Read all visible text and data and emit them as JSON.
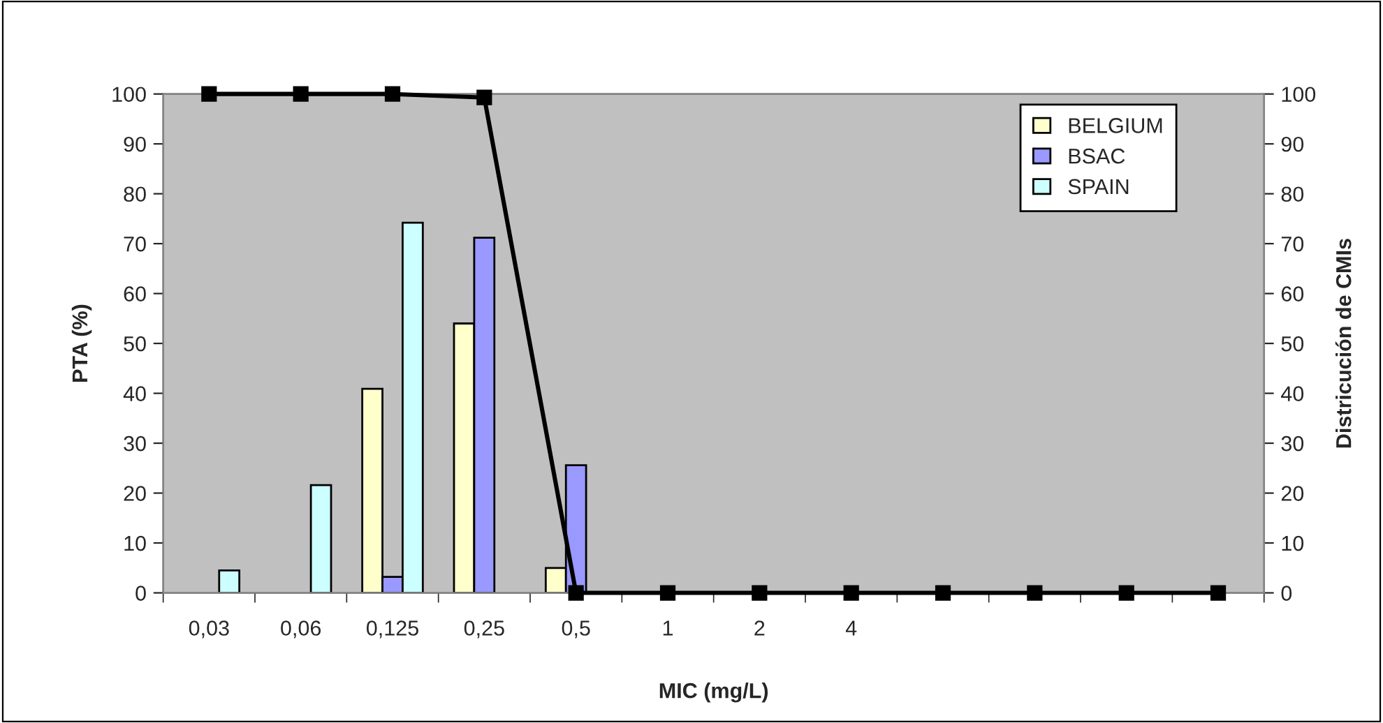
{
  "chart_data": {
    "type": "bar",
    "xlabel": "MIC (mg/L)",
    "ylabel": "PTA (%)",
    "y2label": "Districución de CMIs",
    "categories": [
      "0,03",
      "0,06",
      "0,125",
      "0,25",
      "0,5",
      "1",
      "2",
      "4",
      null,
      null,
      null,
      null
    ],
    "series": [
      {
        "name": "BELGIUM",
        "color": "#ffffcc",
        "axis": "y2",
        "values": [
          null,
          null,
          40.9,
          54,
          5,
          null,
          null,
          null,
          null,
          null,
          null,
          null
        ]
      },
      {
        "name": "BSAC",
        "color": "#9999ff",
        "axis": "y2",
        "values": [
          null,
          null,
          3.2,
          71.2,
          25.6,
          null,
          null,
          null,
          null,
          null,
          null,
          null
        ]
      },
      {
        "name": "SPAIN",
        "color": "#ccffff",
        "axis": "y2",
        "values": [
          4.5,
          21.6,
          74.2,
          null,
          null,
          null,
          null,
          null,
          null,
          null,
          null,
          null
        ]
      },
      {
        "type": "line",
        "color": "#000000",
        "marker": "square",
        "line_style": "solid",
        "values": [
          100,
          100,
          100,
          99.3,
          0,
          0,
          0,
          0,
          0,
          0,
          0,
          0
        ]
      }
    ],
    "ylim": [
      0,
      100
    ],
    "yticks": [
      0,
      10,
      20,
      30,
      40,
      50,
      60,
      70,
      80,
      90,
      100
    ],
    "y2lim": [
      0,
      100
    ],
    "y2ticks": [
      0,
      10,
      20,
      30,
      40,
      50,
      60,
      70,
      80,
      90,
      100
    ],
    "grid": false,
    "legend": "top right"
  }
}
